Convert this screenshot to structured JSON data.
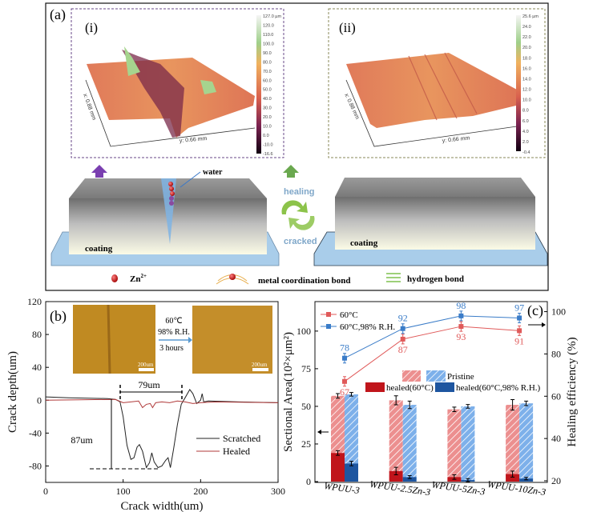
{
  "panel_a": {
    "label": "(a)",
    "sub_i": {
      "label": "(i)",
      "x_axis": "x: 0.88 mm",
      "y_axis": "y: 0.66 mm",
      "colorbar_ticks": [
        "127.0 µm",
        "120.0",
        "110.0",
        "100.0",
        "90.0",
        "80.0",
        "70.0",
        "60.0",
        "50.0",
        "40.0",
        "30.0",
        "20.0",
        "10.0",
        "0.0",
        "-10.0",
        "-16.6"
      ]
    },
    "sub_ii": {
      "label": "(ii)",
      "x_axis": "x: 0.88 mm",
      "y_axis": "y: 0.66 mm",
      "colorbar_ticks": [
        "25.6 µm",
        "24.0",
        "22.0",
        "20.0",
        "18.0",
        "16.0",
        "14.0",
        "12.0",
        "10.0",
        "8.0",
        "6.0",
        "4.0",
        "2.0",
        "-0.4"
      ]
    },
    "water_label": "water",
    "coating_left": "coating",
    "coating_right": "coating",
    "healing_label": "healing",
    "cracked_label": "cracked",
    "legend": {
      "zn": "Zn",
      "zn_sup": "2+",
      "metal_bond": "metal coordination bond",
      "hydrogen_bond": "hydrogen bond"
    },
    "colors": {
      "arrow_left": "#7a3fb0",
      "arrow_right": "#6aa84f",
      "healing_text": "#7fa7c9",
      "cycle_arrow": "#8cc34a"
    }
  },
  "panel_b": {
    "label": "(b)",
    "inset": {
      "condition_1": "60℃",
      "condition_2": "98% R.H.",
      "condition_3": "3 hours",
      "scale_left": "200um",
      "scale_right": "200um"
    },
    "width_annotation": "79um",
    "depth_annotation": "87um"
  },
  "panel_c": {
    "label": "(c)",
    "legend_pristine": "Pristine",
    "legend_healed_60": "healed(60°C)",
    "legend_healed_rh": "healed(60°C,98% R.H.)"
  },
  "chart_data": [
    {
      "type": "line",
      "xlabel": "Crack width(um)",
      "ylabel": "Crack depth(um)",
      "xlim": [
        0,
        300
      ],
      "ylim": [
        -100,
        120
      ],
      "x_ticks": [
        "0",
        "100",
        "200",
        "300"
      ],
      "y_ticks": [
        "120",
        "80",
        "40",
        "0",
        "-40",
        "-80"
      ],
      "legend_placement": "bottom-right",
      "grid": false,
      "series": [
        {
          "name": "Scratched",
          "color": "#222222",
          "points": [
            [
              0,
              4
            ],
            [
              30,
              3
            ],
            [
              80,
              2
            ],
            [
              90,
              1
            ],
            [
              96,
              -2
            ],
            [
              100,
              -20
            ],
            [
              105,
              -55
            ],
            [
              110,
              -72
            ],
            [
              114,
              -70
            ],
            [
              118,
              -57
            ],
            [
              121,
              -54
            ],
            [
              125,
              -62
            ],
            [
              130,
              -82
            ],
            [
              134,
              -76
            ],
            [
              137,
              -64
            ],
            [
              140,
              -75
            ],
            [
              145,
              -82
            ],
            [
              150,
              -80
            ],
            [
              155,
              -73
            ],
            [
              158,
              -70
            ],
            [
              161,
              -82
            ],
            [
              165,
              -60
            ],
            [
              170,
              -30
            ],
            [
              175,
              -5
            ],
            [
              180,
              3
            ],
            [
              186,
              13
            ],
            [
              190,
              8
            ],
            [
              195,
              -4
            ],
            [
              200,
              0
            ],
            [
              202,
              8
            ],
            [
              204,
              -2
            ],
            [
              210,
              -1
            ],
            [
              250,
              -2
            ],
            [
              300,
              -3
            ]
          ]
        },
        {
          "name": "Healed",
          "color": "#b03a3a",
          "points": [
            [
              0,
              0
            ],
            [
              90,
              1
            ],
            [
              100,
              -3
            ],
            [
              110,
              -2
            ],
            [
              120,
              -1
            ],
            [
              125,
              -9
            ],
            [
              130,
              -5
            ],
            [
              135,
              -4
            ],
            [
              138,
              -9
            ],
            [
              142,
              -3
            ],
            [
              150,
              -2
            ],
            [
              160,
              -3
            ],
            [
              170,
              -1
            ],
            [
              180,
              -2
            ],
            [
              190,
              -4
            ],
            [
              200,
              -3
            ],
            [
              220,
              -2
            ],
            [
              300,
              -3
            ]
          ]
        }
      ]
    },
    {
      "type": "bar",
      "categories": [
        "WPUU-3",
        "WPUU-2.5Zn-3",
        "WPUU-5Zn-3",
        "WPUU-10Zn-3"
      ],
      "ylabel": "Sectional Area(10²×μm²)",
      "ylabel_right": "Healing efficiency (%)",
      "ylim": [
        0,
        118
      ],
      "ylim_right": [
        20,
        104
      ],
      "y_ticks": [
        "0",
        "25",
        "50",
        "75",
        "100"
      ],
      "y_ticks_right": [
        "20",
        "40",
        "60",
        "80",
        "100"
      ],
      "grid": false,
      "legend_placement": "top-left",
      "bars": [
        {
          "group": "60°C",
          "pristine": [
            57,
            54,
            48,
            51
          ],
          "healed": [
            19,
            7,
            3,
            5
          ],
          "pristine_err": [
            1.5,
            3,
            1.5,
            3.5
          ],
          "healed_err": [
            1.5,
            2.5,
            1.5,
            2
          ],
          "color_pristine": "#e88a8a",
          "color_healed": "#c0151b"
        },
        {
          "group": "60°C,98% R.H.",
          "pristine": [
            58,
            51,
            50,
            52
          ],
          "healed": [
            12,
            3,
            1,
            2
          ],
          "pristine_err": [
            1.2,
            2.5,
            1.2,
            1.5
          ],
          "healed_err": [
            1.5,
            1,
            1,
            0.8
          ],
          "color_pristine": "#7aaee8",
          "color_healed": "#1e56a0"
        }
      ],
      "series": [
        {
          "name": "60°C",
          "axis": "right",
          "color": "#e05a5a",
          "values": [
            67,
            87,
            93,
            91
          ],
          "labels": [
            "67",
            "87",
            "93",
            "91"
          ]
        },
        {
          "name": "60°C,98% R.H.",
          "axis": "right",
          "color": "#3a7cc8",
          "values": [
            78,
            92,
            98,
            97
          ],
          "labels": [
            "78",
            "92",
            "98",
            "97"
          ]
        }
      ]
    }
  ]
}
